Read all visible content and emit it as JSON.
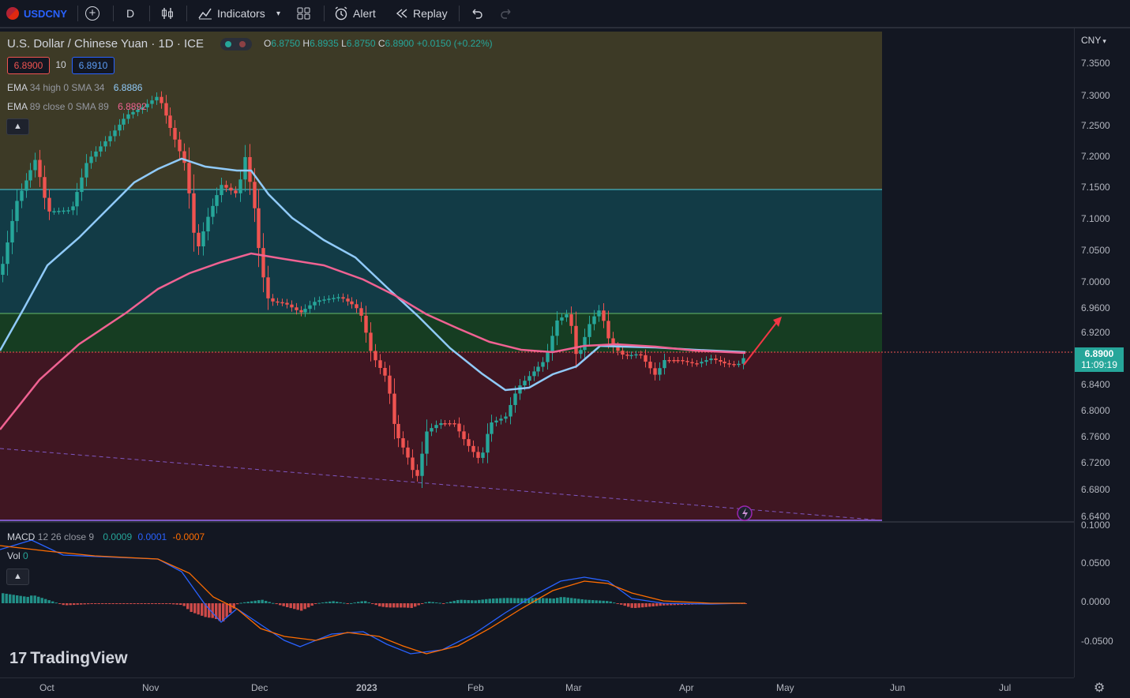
{
  "toolbar": {
    "symbol": "USDCNY",
    "interval": "D",
    "indicators": "Indicators",
    "alert": "Alert",
    "replay": "Replay"
  },
  "legend": {
    "title": "U.S. Dollar / Chinese Yuan · 1D · ICE",
    "o_label": "O",
    "o": "6.8750",
    "h_label": "H",
    "h": "6.8935",
    "l_label": "L",
    "l": "6.8750",
    "c_label": "C",
    "c": "6.8900",
    "change": "+0.0150 (+0.22%)",
    "bid": "6.8900",
    "spread": "10",
    "ask": "6.8910"
  },
  "indicators": {
    "ema1_name": "EMA",
    "ema1_params": "34 high 0 SMA 34",
    "ema1_value": "6.8886",
    "ema2_name": "EMA",
    "ema2_params": "89 close 0 SMA 89",
    "ema2_value": "6.8892",
    "macd_name": "MACD",
    "macd_params": "12 26 close 9",
    "macd_v1": "0.0009",
    "macd_v2": "0.0001",
    "macd_v3": "-0.0007",
    "vol_name": "Vol",
    "vol_value": "0"
  },
  "price_scale": {
    "currency": "CNY",
    "ticks": [
      "7.3500",
      "7.3000",
      "7.2500",
      "7.2000",
      "7.1500",
      "7.1000",
      "7.0500",
      "7.0000",
      "6.9600",
      "6.9200",
      "6.8800",
      "6.8400",
      "6.8000",
      "6.7600",
      "6.7200",
      "6.6800",
      "6.6400"
    ],
    "macd_ticks": [
      "0.1000",
      "0.0500",
      "0.0000",
      "-0.0500"
    ],
    "last_price": "6.8900",
    "countdown": "11:09:19"
  },
  "time_axis": [
    "Oct",
    "Nov",
    "Dec",
    "2023",
    "Feb",
    "Mar",
    "Apr",
    "May",
    "Jun",
    "Jul"
  ],
  "brand": "TradingView",
  "colors": {
    "up": "#26a69a",
    "down": "#ef5350",
    "ema34": "#90caf9",
    "ema89": "#f06292",
    "macd": "#2962ff",
    "signal": "#ff6d00"
  }
}
